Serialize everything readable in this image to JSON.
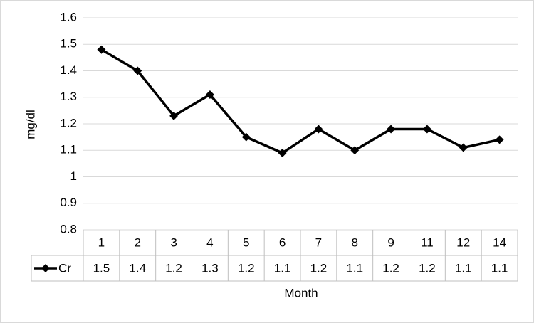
{
  "chart_data": {
    "type": "line",
    "x_label": "Month",
    "y_label": "mg/dl",
    "categories": [
      "1",
      "2",
      "3",
      "4",
      "5",
      "6",
      "7",
      "8",
      "9",
      "11",
      "12",
      "14"
    ],
    "series": [
      {
        "name": "Cr",
        "color": "#000000",
        "values": [
          1.48,
          1.4,
          1.23,
          1.31,
          1.15,
          1.09,
          1.18,
          1.1,
          1.18,
          1.18,
          1.11,
          1.14
        ],
        "value_labels": [
          "1.5",
          "1.4",
          "1.2",
          "1.3",
          "1.2",
          "1.1",
          "1.2",
          "1.1",
          "1.2",
          "1.2",
          "1.1",
          "1.1"
        ]
      }
    ],
    "ylim": [
      0.8,
      1.6
    ],
    "yticks": [
      0.8,
      0.9,
      1,
      1.1,
      1.2,
      1.3,
      1.4,
      1.5,
      1.6
    ],
    "grid": true,
    "legend": "data-table"
  }
}
